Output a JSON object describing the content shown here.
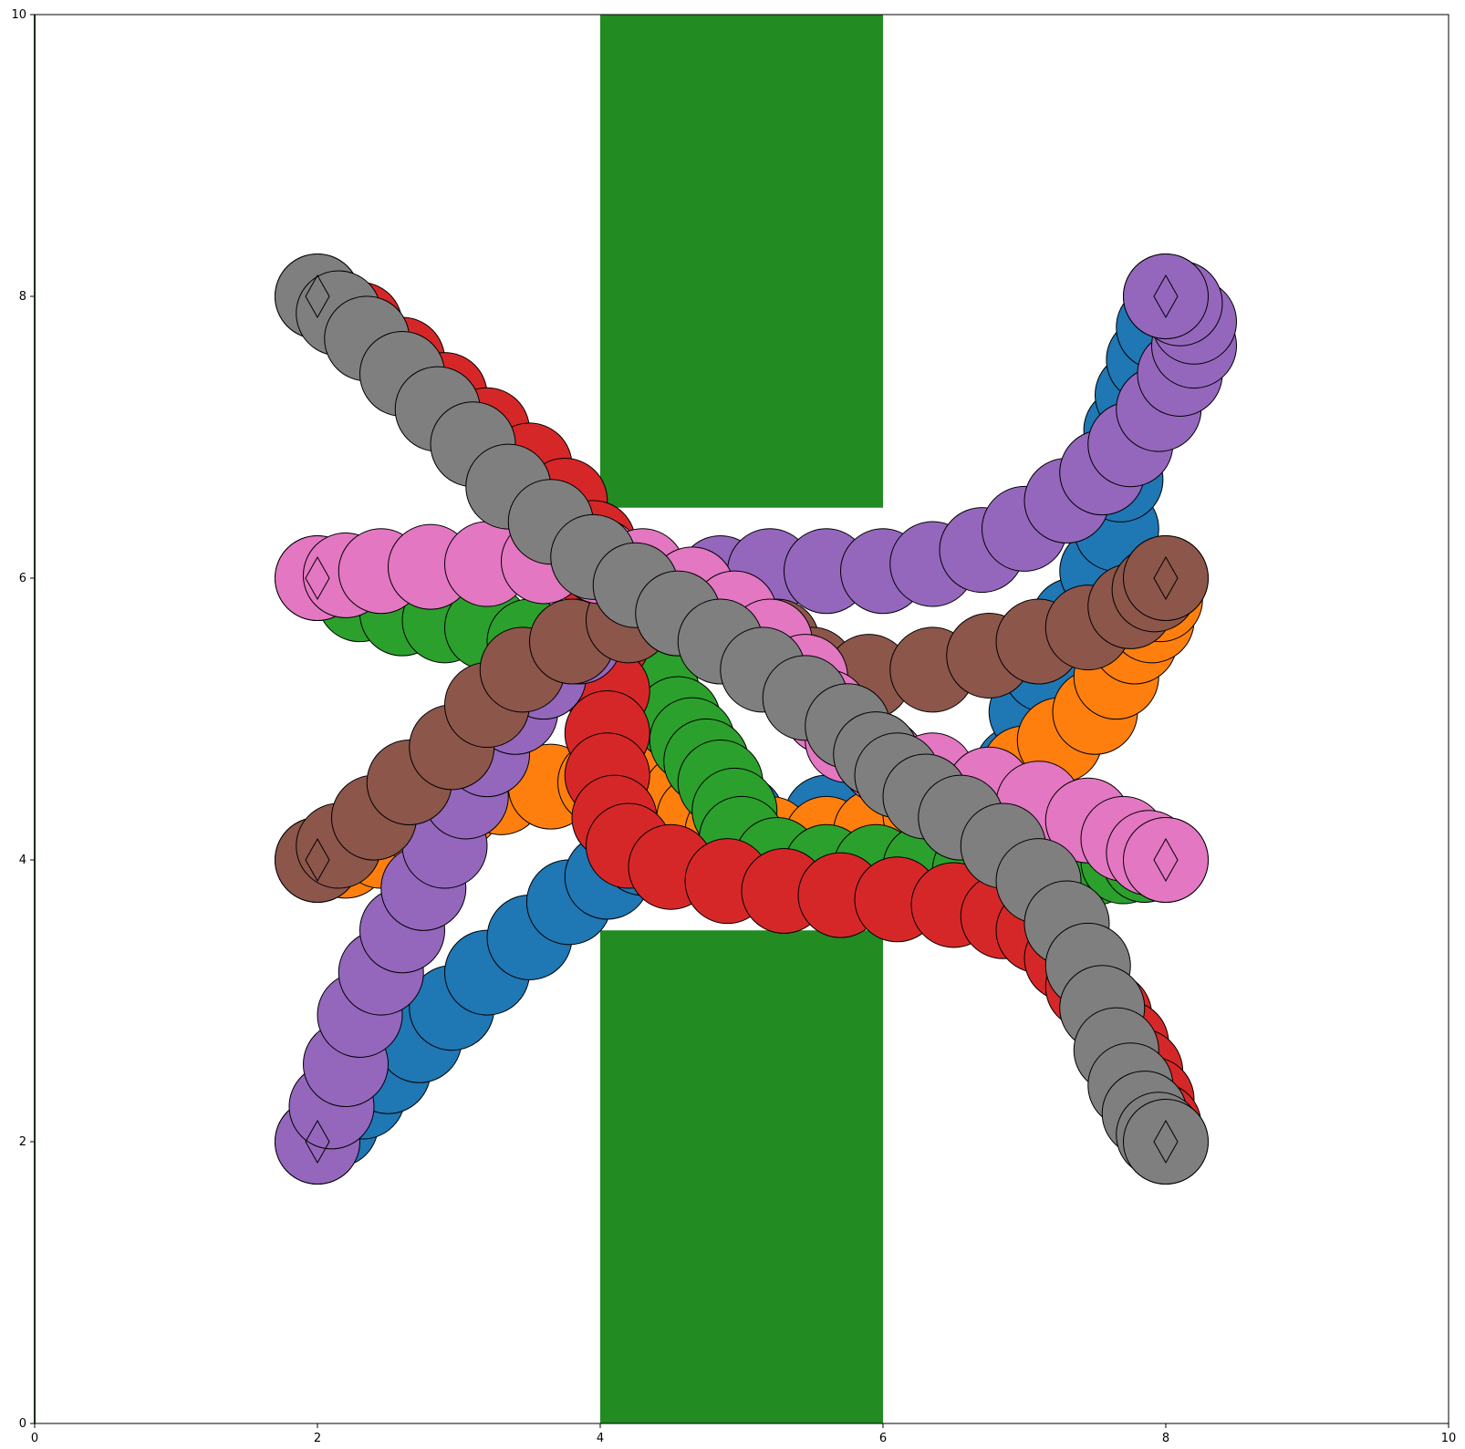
{
  "chart_data": {
    "type": "scatter",
    "title": "",
    "xlabel": "",
    "ylabel": "",
    "xlim": [
      0,
      10
    ],
    "ylim": [
      0,
      10
    ],
    "grid": false,
    "legend": "none",
    "x_ticks": [
      0,
      2,
      4,
      6,
      8,
      10
    ],
    "y_ticks": [
      0,
      2,
      4,
      6,
      8,
      10
    ],
    "obstacles": [
      {
        "x": [
          4,
          6
        ],
        "y": [
          6.5,
          10
        ],
        "color": "#228b22"
      },
      {
        "x": [
          4,
          6
        ],
        "y": [
          0,
          3.5
        ],
        "color": "#228b22"
      }
    ],
    "agent_radius": 0.3,
    "goal_marker": "diamond",
    "series": [
      {
        "color": "#1f77b4",
        "points": [
          [
            2.0,
            2.0
          ],
          [
            2.13,
            2.12
          ],
          [
            2.32,
            2.32
          ],
          [
            2.5,
            2.5
          ],
          [
            2.72,
            2.72
          ],
          [
            2.95,
            2.95
          ],
          [
            3.2,
            3.2
          ],
          [
            3.5,
            3.45
          ],
          [
            3.78,
            3.7
          ],
          [
            4.05,
            3.88
          ],
          [
            4.3,
            4.05
          ],
          [
            4.55,
            4.2
          ],
          [
            5.0,
            4.3
          ],
          [
            5.6,
            4.3
          ],
          [
            6.2,
            4.3
          ],
          [
            6.65,
            4.4
          ],
          [
            6.95,
            4.65
          ],
          [
            7.05,
            5.05
          ],
          [
            7.15,
            5.35
          ],
          [
            7.35,
            5.7
          ],
          [
            7.55,
            6.05
          ],
          [
            7.65,
            6.35
          ],
          [
            7.68,
            6.7
          ],
          [
            7.72,
            7.05
          ],
          [
            7.8,
            7.3
          ],
          [
            7.88,
            7.55
          ],
          [
            7.95,
            7.78
          ],
          [
            8.0,
            8.0
          ]
        ]
      },
      {
        "color": "#ff7f0e",
        "points": [
          [
            2.0,
            4.0
          ],
          [
            2.2,
            4.03
          ],
          [
            2.45,
            4.1
          ],
          [
            2.75,
            4.25
          ],
          [
            3.0,
            4.38
          ],
          [
            3.3,
            4.48
          ],
          [
            3.65,
            4.52
          ],
          [
            4.0,
            4.55
          ],
          [
            4.3,
            4.62
          ],
          [
            4.5,
            4.6
          ],
          [
            4.6,
            4.45
          ],
          [
            4.7,
            4.3
          ],
          [
            4.9,
            4.2
          ],
          [
            5.2,
            4.15
          ],
          [
            5.6,
            4.15
          ],
          [
            5.95,
            4.2
          ],
          [
            6.3,
            4.32
          ],
          [
            6.65,
            4.45
          ],
          [
            7.0,
            4.65
          ],
          [
            7.25,
            4.85
          ],
          [
            7.5,
            5.05
          ],
          [
            7.65,
            5.3
          ],
          [
            7.78,
            5.55
          ],
          [
            7.9,
            5.7
          ],
          [
            7.96,
            5.85
          ],
          [
            8.0,
            6.0
          ]
        ]
      },
      {
        "color": "#2ca02c",
        "points": [
          [
            2.0,
            6.0
          ],
          [
            2.3,
            5.85
          ],
          [
            2.6,
            5.75
          ],
          [
            2.9,
            5.7
          ],
          [
            3.2,
            5.65
          ],
          [
            3.5,
            5.55
          ],
          [
            3.8,
            5.45
          ],
          [
            4.1,
            5.35
          ],
          [
            4.4,
            5.2
          ],
          [
            4.55,
            5.0
          ],
          [
            4.65,
            4.85
          ],
          [
            4.75,
            4.7
          ],
          [
            4.85,
            4.55
          ],
          [
            4.95,
            4.35
          ],
          [
            5.0,
            4.15
          ],
          [
            5.25,
            4.0
          ],
          [
            5.6,
            3.95
          ],
          [
            5.95,
            3.95
          ],
          [
            6.3,
            3.95
          ],
          [
            6.65,
            3.93
          ],
          [
            6.95,
            3.95
          ],
          [
            7.25,
            3.97
          ],
          [
            7.5,
            3.98
          ],
          [
            7.7,
            3.99
          ],
          [
            7.85,
            4.0
          ],
          [
            8.0,
            4.0
          ]
        ]
      },
      {
        "color": "#d62728",
        "points": [
          [
            2.0,
            8.0
          ],
          [
            2.3,
            7.8
          ],
          [
            2.6,
            7.55
          ],
          [
            2.9,
            7.3
          ],
          [
            3.2,
            7.05
          ],
          [
            3.5,
            6.8
          ],
          [
            3.75,
            6.55
          ],
          [
            3.95,
            6.25
          ],
          [
            4.05,
            5.9
          ],
          [
            4.05,
            5.55
          ],
          [
            4.05,
            5.2
          ],
          [
            4.05,
            4.9
          ],
          [
            4.05,
            4.6
          ],
          [
            4.1,
            4.3
          ],
          [
            4.2,
            4.1
          ],
          [
            4.5,
            3.95
          ],
          [
            4.9,
            3.85
          ],
          [
            5.3,
            3.78
          ],
          [
            5.7,
            3.75
          ],
          [
            6.1,
            3.72
          ],
          [
            6.5,
            3.68
          ],
          [
            6.85,
            3.6
          ],
          [
            7.1,
            3.5
          ],
          [
            7.3,
            3.3
          ],
          [
            7.45,
            3.1
          ],
          [
            7.6,
            2.9
          ],
          [
            7.72,
            2.7
          ],
          [
            7.82,
            2.5
          ],
          [
            7.9,
            2.3
          ],
          [
            7.95,
            2.12
          ],
          [
            8.0,
            2.0
          ]
        ]
      },
      {
        "color": "#9467bd",
        "points": [
          [
            2.0,
            2.0
          ],
          [
            2.1,
            2.25
          ],
          [
            2.2,
            2.55
          ],
          [
            2.3,
            2.9
          ],
          [
            2.45,
            3.2
          ],
          [
            2.6,
            3.5
          ],
          [
            2.75,
            3.8
          ],
          [
            2.9,
            4.1
          ],
          [
            3.05,
            4.45
          ],
          [
            3.2,
            4.75
          ],
          [
            3.4,
            5.05
          ],
          [
            3.6,
            5.3
          ],
          [
            3.85,
            5.55
          ],
          [
            4.15,
            5.75
          ],
          [
            4.5,
            5.9
          ],
          [
            4.85,
            6.0
          ],
          [
            5.2,
            6.05
          ],
          [
            5.6,
            6.05
          ],
          [
            6.0,
            6.05
          ],
          [
            6.35,
            6.1
          ],
          [
            6.7,
            6.2
          ],
          [
            7.0,
            6.35
          ],
          [
            7.3,
            6.55
          ],
          [
            7.55,
            6.75
          ],
          [
            7.75,
            6.95
          ],
          [
            7.95,
            7.2
          ],
          [
            8.1,
            7.45
          ],
          [
            8.2,
            7.65
          ],
          [
            8.2,
            7.82
          ],
          [
            8.1,
            7.95
          ],
          [
            8.0,
            8.0
          ]
        ]
      },
      {
        "color": "#8c564b",
        "points": [
          [
            2.0,
            4.0
          ],
          [
            2.15,
            4.1
          ],
          [
            2.4,
            4.3
          ],
          [
            2.65,
            4.55
          ],
          [
            2.95,
            4.8
          ],
          [
            3.2,
            5.1
          ],
          [
            3.45,
            5.35
          ],
          [
            3.8,
            5.55
          ],
          [
            4.2,
            5.7
          ],
          [
            4.55,
            5.75
          ],
          [
            4.9,
            5.65
          ],
          [
            5.25,
            5.55
          ],
          [
            5.5,
            5.35
          ],
          [
            5.9,
            5.3
          ],
          [
            6.35,
            5.35
          ],
          [
            6.75,
            5.45
          ],
          [
            7.1,
            5.55
          ],
          [
            7.45,
            5.65
          ],
          [
            7.75,
            5.8
          ],
          [
            7.92,
            5.92
          ],
          [
            8.0,
            6.0
          ]
        ]
      },
      {
        "color": "#e377c2",
        "points": [
          [
            2.0,
            6.0
          ],
          [
            2.2,
            6.02
          ],
          [
            2.45,
            6.05
          ],
          [
            2.8,
            6.08
          ],
          [
            3.2,
            6.1
          ],
          [
            3.6,
            6.12
          ],
          [
            4.0,
            6.12
          ],
          [
            4.3,
            6.05
          ],
          [
            4.65,
            5.92
          ],
          [
            4.95,
            5.75
          ],
          [
            5.2,
            5.55
          ],
          [
            5.45,
            5.3
          ],
          [
            5.6,
            5.05
          ],
          [
            5.75,
            4.85
          ],
          [
            6.0,
            4.7
          ],
          [
            6.35,
            4.6
          ],
          [
            6.75,
            4.5
          ],
          [
            7.1,
            4.4
          ],
          [
            7.45,
            4.28
          ],
          [
            7.7,
            4.15
          ],
          [
            7.88,
            4.05
          ],
          [
            8.0,
            4.0
          ]
        ]
      },
      {
        "color": "#7f7f7f",
        "points": [
          [
            2.0,
            8.0
          ],
          [
            2.15,
            7.88
          ],
          [
            2.35,
            7.7
          ],
          [
            2.6,
            7.45
          ],
          [
            2.85,
            7.2
          ],
          [
            3.1,
            6.95
          ],
          [
            3.35,
            6.65
          ],
          [
            3.65,
            6.4
          ],
          [
            3.95,
            6.15
          ],
          [
            4.25,
            5.95
          ],
          [
            4.55,
            5.75
          ],
          [
            4.85,
            5.55
          ],
          [
            5.15,
            5.35
          ],
          [
            5.45,
            5.15
          ],
          [
            5.75,
            4.95
          ],
          [
            5.95,
            4.75
          ],
          [
            6.1,
            4.6
          ],
          [
            6.3,
            4.45
          ],
          [
            6.55,
            4.3
          ],
          [
            6.85,
            4.1
          ],
          [
            7.1,
            3.85
          ],
          [
            7.3,
            3.55
          ],
          [
            7.45,
            3.25
          ],
          [
            7.55,
            2.95
          ],
          [
            7.65,
            2.65
          ],
          [
            7.75,
            2.4
          ],
          [
            7.85,
            2.2
          ],
          [
            7.95,
            2.05
          ],
          [
            8.0,
            2.0
          ]
        ]
      }
    ]
  }
}
